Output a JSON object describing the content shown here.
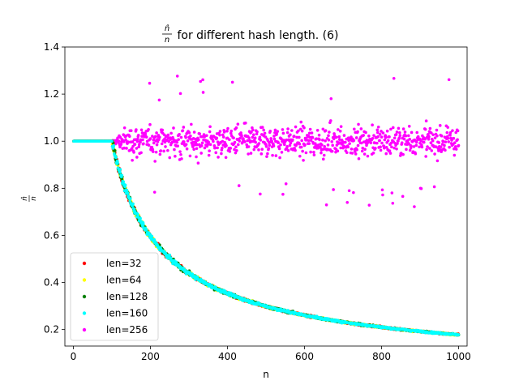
{
  "chart_data": {
    "type": "scatter",
    "title": "n̂/n for different hash length. (6)",
    "title_math": "n̂/n",
    "title_rest": " for different hash length. (6)",
    "xlabel": "n",
    "ylabel": "n̂/n",
    "ylabel_num": "n̂",
    "ylabel_den": "n",
    "xlim": [
      -22,
      1022
    ],
    "ylim": [
      0.13,
      1.4
    ],
    "xticks": [
      0,
      200,
      400,
      600,
      800,
      1000
    ],
    "yticks": [
      0.2,
      0.4,
      0.6,
      0.8,
      1.0,
      1.2,
      1.4
    ],
    "xtick_labels": [
      "0",
      "200",
      "400",
      "600",
      "800",
      "1000"
    ],
    "ytick_labels": [
      "0.2",
      "0.4",
      "0.6",
      "0.8",
      "1.0",
      "1.2",
      "1.4"
    ],
    "grid": false,
    "legend_position": "lower-left",
    "series": [
      {
        "name": "len=32",
        "color": "#ff0000",
        "pattern": "saturating",
        "capacity": 100,
        "n_range": [
          1,
          1000
        ]
      },
      {
        "name": "len=64",
        "color": "#ffff00",
        "pattern": "saturating",
        "capacity": 100,
        "n_range": [
          1,
          1000
        ]
      },
      {
        "name": "len=128",
        "color": "#008000",
        "pattern": "saturating",
        "capacity": 100,
        "n_range": [
          1,
          1000
        ]
      },
      {
        "name": "len=160",
        "color": "#00ffff",
        "pattern": "saturating",
        "capacity": 100,
        "n_range": [
          1,
          1000
        ]
      },
      {
        "name": "len=256",
        "color": "#ff00ff",
        "pattern": "noisy-around-one",
        "flat_until": 100,
        "mean": 1.0,
        "spread_range": [
          0.74,
          1.35
        ],
        "n_range": [
          1,
          1000
        ]
      }
    ]
  }
}
